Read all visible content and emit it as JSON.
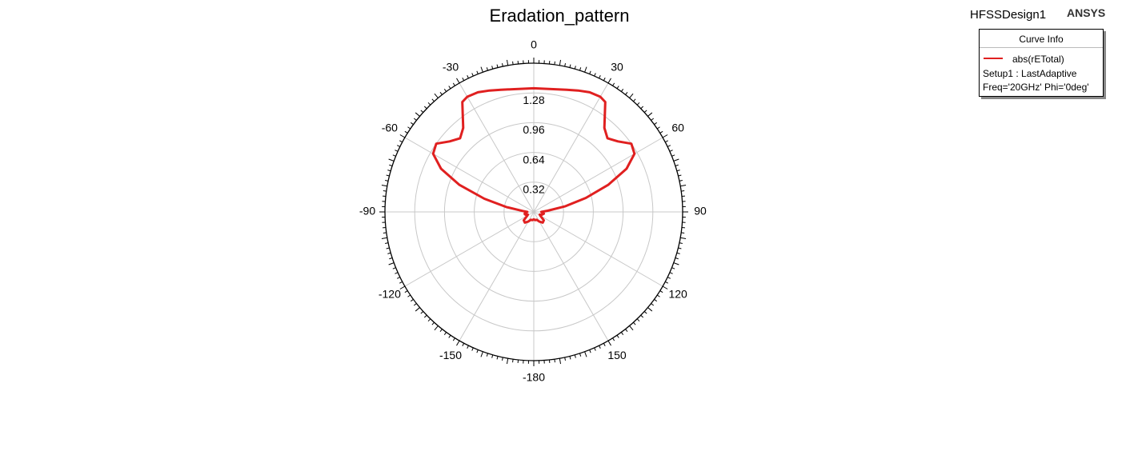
{
  "header": {
    "design": "HFSSDesign1",
    "brand": "ANSYS"
  },
  "legend": {
    "title": "Curve Info",
    "series": "abs(rETotal)",
    "setup": "Setup1 : LastAdaptive",
    "params": "Freq='20GHz' Phi='0deg'"
  },
  "colors": {
    "curve": "#e02020",
    "grid": "#c8c8c8",
    "axis": "#000000"
  },
  "chart_data": {
    "type": "line",
    "polar": true,
    "title": "Eradation_pattern",
    "angle_ticks": [
      "0",
      "30",
      "60",
      "90",
      "120",
      "150",
      "-180",
      "-150",
      "-120",
      "-90",
      "-60",
      "-30"
    ],
    "angle_tick_values": [
      0,
      30,
      60,
      90,
      120,
      150,
      180,
      -150,
      -120,
      -90,
      -60,
      -30
    ],
    "radial_ticks": [
      "0.32",
      "0.64",
      "0.96",
      "1.28"
    ],
    "radial_tick_values": [
      0.32,
      0.64,
      0.96,
      1.28
    ],
    "rlim": [
      0,
      1.6
    ],
    "grid": true,
    "legend_position": "top-right",
    "series": [
      {
        "name": "abs(rETotal)",
        "theta": [
          0,
          5,
          10,
          15,
          20,
          25,
          30,
          33,
          36,
          40,
          45,
          50,
          55,
          60,
          65,
          70,
          75,
          80,
          85,
          90,
          95,
          100,
          105,
          110,
          115,
          120,
          130,
          140,
          150,
          160,
          170,
          180,
          -170,
          -160,
          -150,
          -140,
          -130,
          -120,
          -115,
          -110,
          -105,
          -100,
          -95,
          -90,
          -85,
          -80,
          -75,
          -70,
          -65,
          -60,
          -55,
          -50,
          -45,
          -40,
          -36,
          -33,
          -30,
          -25,
          -20,
          -15,
          -10,
          -5
        ],
        "r": [
          1.33,
          1.33,
          1.34,
          1.36,
          1.39,
          1.42,
          1.43,
          1.41,
          1.3,
          1.18,
          1.12,
          1.18,
          1.28,
          1.25,
          1.1,
          0.85,
          0.58,
          0.34,
          0.15,
          0.08,
          0.09,
          0.11,
          0.1,
          0.09,
          0.07,
          0.08,
          0.14,
          0.15,
          0.12,
          0.09,
          0.09,
          0.08,
          0.09,
          0.09,
          0.12,
          0.15,
          0.14,
          0.08,
          0.07,
          0.09,
          0.1,
          0.1,
          0.08,
          0.07,
          0.12,
          0.3,
          0.55,
          0.85,
          1.1,
          1.25,
          1.28,
          1.18,
          1.12,
          1.18,
          1.3,
          1.41,
          1.43,
          1.42,
          1.39,
          1.36,
          1.34,
          1.33
        ]
      }
    ]
  }
}
